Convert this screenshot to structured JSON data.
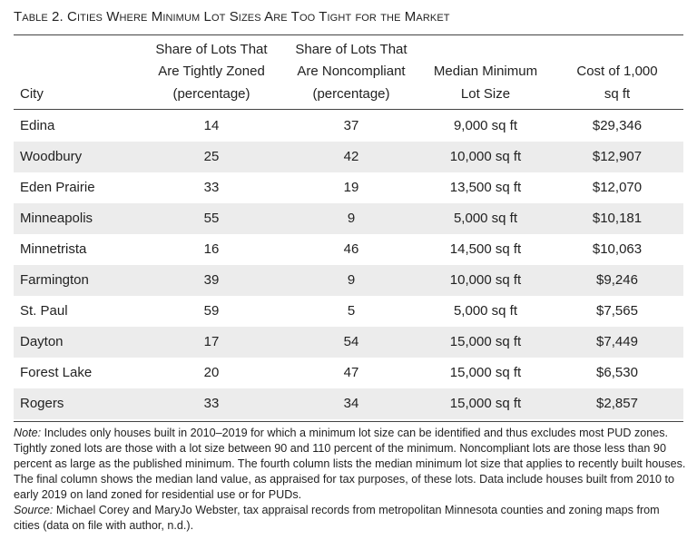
{
  "title": "Table 2. Cities Where Minimum Lot Sizes Are Too Tight for the Market",
  "table": {
    "headers": [
      [
        "City"
      ],
      [
        "Share of Lots That",
        "Are Tightly Zoned",
        "(percentage)"
      ],
      [
        "Share of Lots That",
        "Are Noncompliant",
        "(percentage)"
      ],
      [
        "Median Minimum",
        "Lot Size"
      ],
      [
        "Cost of 1,000",
        "sq ft"
      ]
    ],
    "rows": [
      [
        "Edina",
        14,
        37,
        "9,000 sq ft",
        "$29,346"
      ],
      [
        "Woodbury",
        25,
        42,
        "10,000 sq ft",
        "$12,907"
      ],
      [
        "Eden Prairie",
        33,
        19,
        "13,500 sq ft",
        "$12,070"
      ],
      [
        "Minneapolis",
        55,
        9,
        "5,000 sq ft",
        "$10,181"
      ],
      [
        "Minnetrista",
        16,
        46,
        "14,500 sq ft",
        "$10,063"
      ],
      [
        "Farmington",
        39,
        9,
        "10,000 sq ft",
        "$9,246"
      ],
      [
        "St. Paul",
        59,
        5,
        "5,000 sq ft",
        "$7,565"
      ],
      [
        "Dayton",
        17,
        54,
        "15,000 sq ft",
        "$7,449"
      ],
      [
        "Forest Lake",
        20,
        47,
        "15,000 sq ft",
        "$6,530"
      ],
      [
        "Rogers",
        33,
        34,
        "15,000 sq ft",
        "$2,857"
      ]
    ]
  },
  "notes": {
    "note_label": "Note:",
    "note_text": "Includes only houses built in 2010–2019 for which a minimum lot size can be identified and thus excludes most PUD zones. Tightly zoned lots are those with a lot size between 90 and 110 percent of the minimum. Noncompliant lots are those less than 90 percent as large as the published minimum. The fourth column lists the median minimum lot size that applies to recently built houses. The final column shows the median land value, as appraised for tax purposes, of these lots. Data include houses built from 2010 to early 2019 on land zoned for residential use or for PUDs.",
    "source_label": "Source:",
    "source_text": "Michael Corey and MaryJo Webster, tax appraisal records from metropolitan Minnesota counties and zoning maps from cities (data on file with author, n.d.)."
  }
}
